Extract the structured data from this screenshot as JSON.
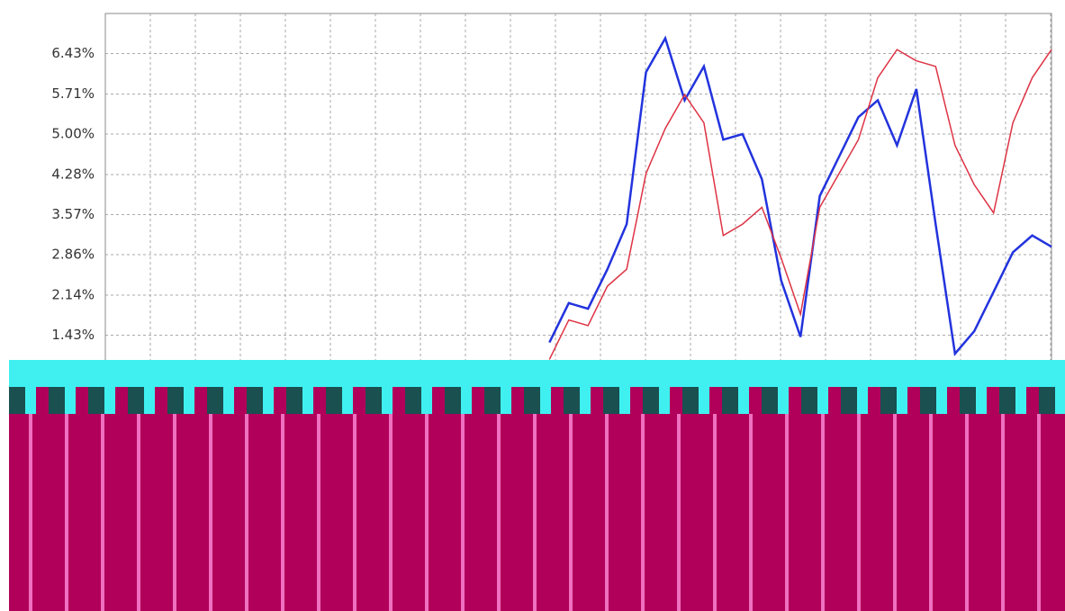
{
  "chart_data": {
    "type": "line",
    "categories": [
      null,
      null,
      null,
      null,
      null,
      null,
      null,
      null,
      null,
      null,
      null,
      null,
      null,
      null,
      null,
      null,
      null,
      null,
      null,
      null,
      null,
      null,
      null,
      null,
      null,
      null,
      null,
      null,
      null,
      null,
      null,
      null,
      null,
      null,
      null,
      null,
      null,
      null,
      null,
      null,
      null,
      null,
      null,
      null,
      null,
      null,
      null,
      null,
      null,
      null
    ],
    "series": [
      {
        "color": "#2233dd",
        "values": [
          null,
          null,
          null,
          null,
          null,
          null,
          null,
          null,
          null,
          null,
          null,
          null,
          null,
          null,
          null,
          null,
          null,
          null,
          null,
          null,
          null,
          null,
          null,
          1.3,
          2.0,
          1.9,
          2.6,
          3.4,
          6.1,
          6.7,
          5.6,
          6.2,
          4.9,
          5.0,
          4.2,
          2.4,
          1.4,
          3.9,
          4.6,
          5.3,
          5.6,
          4.8,
          5.8,
          3.4,
          1.1,
          1.5,
          2.2,
          2.9,
          3.2,
          3.0
        ]
      },
      {
        "color": "#dd3344",
        "values": [
          null,
          null,
          null,
          null,
          null,
          null,
          null,
          null,
          null,
          null,
          null,
          null,
          null,
          null,
          null,
          null,
          null,
          null,
          null,
          null,
          null,
          null,
          null,
          1.0,
          1.7,
          1.6,
          2.3,
          2.6,
          4.3,
          5.1,
          5.7,
          5.2,
          3.2,
          3.4,
          3.7,
          2.8,
          1.8,
          3.7,
          4.3,
          4.9,
          6.0,
          6.5,
          6.3,
          6.2,
          4.8,
          4.1,
          3.6,
          5.2,
          6.0,
          6.5
        ]
      }
    ],
    "ylim": [
      0,
      7.14
    ],
    "yticks": [
      {
        "value": 1.43,
        "label": "1.43%"
      },
      {
        "value": 2.14,
        "label": "2.14%"
      },
      {
        "value": 2.86,
        "label": "2.86%"
      },
      {
        "value": 3.57,
        "label": "3.57%"
      },
      {
        "value": 4.28,
        "label": "4.28%"
      },
      {
        "value": 5.0,
        "label": "5.00%"
      },
      {
        "value": 5.71,
        "label": "5.71%"
      },
      {
        "value": 6.43,
        "label": "6.43%"
      }
    ],
    "grid": true
  }
}
